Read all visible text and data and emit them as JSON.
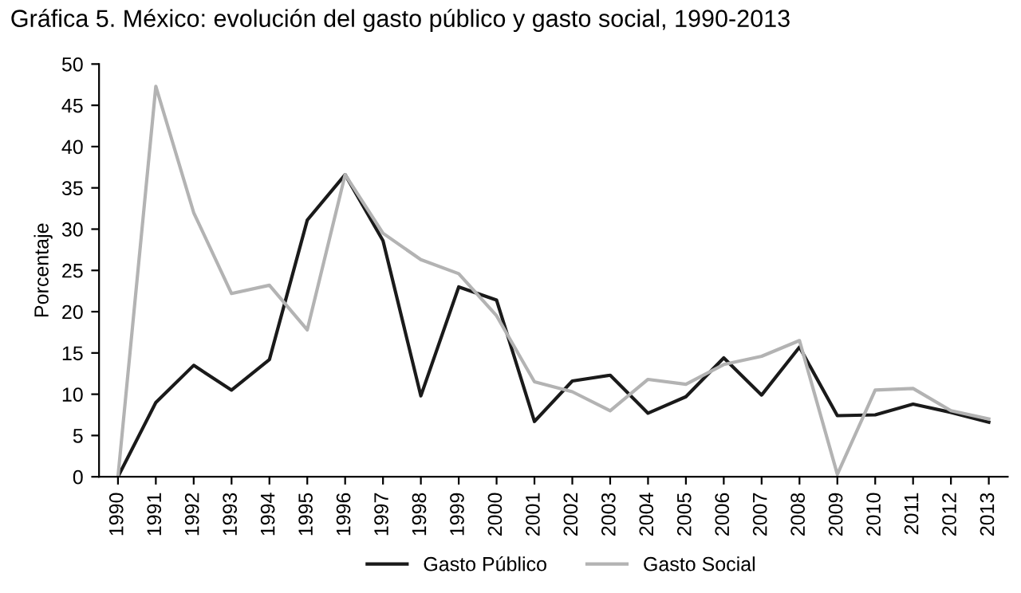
{
  "chart_data": {
    "type": "line",
    "title": "Gráfica 5. México: evolución del gasto público y gasto social, 1990-2013",
    "ylabel": "Porcentaje",
    "categories": [
      "1990",
      "1991",
      "1992",
      "1993",
      "1994",
      "1995",
      "1996",
      "1997",
      "1998",
      "1999",
      "2000",
      "2001",
      "2002",
      "2003",
      "2004",
      "2005",
      "2006",
      "2007",
      "2008",
      "2009",
      "2010",
      "2011",
      "2012",
      "2013"
    ],
    "series": [
      {
        "name": "Gasto Público",
        "color": "#1a1a1a",
        "values": [
          0,
          9,
          13.5,
          10.5,
          14.2,
          31.1,
          36.6,
          28.6,
          9.8,
          23,
          21.4,
          6.7,
          11.6,
          12.3,
          7.7,
          9.7,
          14.4,
          9.9,
          15.7,
          7.4,
          7.5,
          8.8,
          7.8,
          6.6
        ]
      },
      {
        "name": "Gasto Social",
        "color": "#b3b3b3",
        "values": [
          0,
          47.3,
          32,
          22.2,
          23.2,
          17.8,
          36.6,
          29.5,
          26.3,
          24.6,
          19.5,
          11.5,
          10.3,
          8,
          11.8,
          11.2,
          13.6,
          14.6,
          16.5,
          0.3,
          10.5,
          10.7,
          8,
          7
        ]
      }
    ],
    "ylim": [
      0,
      50
    ],
    "yticks": [
      0,
      5,
      10,
      15,
      20,
      25,
      30,
      35,
      40,
      45,
      50
    ],
    "grid": false,
    "legend": "bottom",
    "marker": "none",
    "line_style": "solid"
  }
}
